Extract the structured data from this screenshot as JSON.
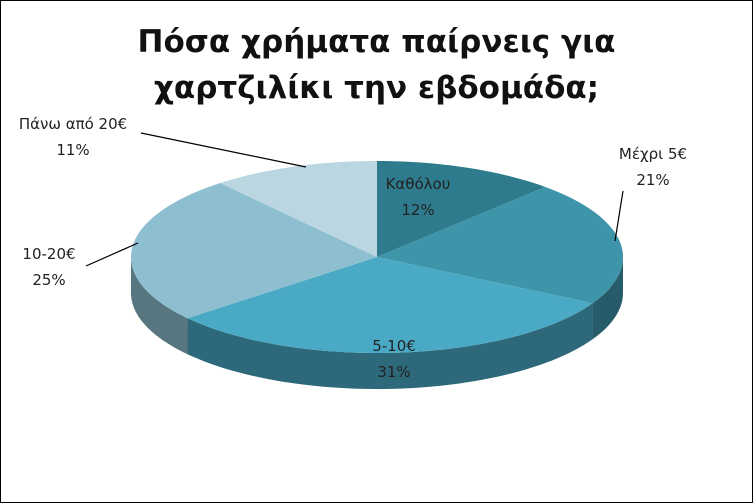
{
  "chart_data": {
    "type": "pie",
    "title": "Πόσα χρήματα παίρνεις για χαρτζιλίκι την εβδομάδα;",
    "categories": [
      "Καθόλου",
      "Μέχρι 5€",
      "5-10€",
      "10-20€",
      "Πάνω από 20€"
    ],
    "values": [
      12,
      21,
      31,
      25,
      11
    ],
    "value_labels": [
      "12%",
      "21%",
      "31%",
      "25%",
      "11%"
    ],
    "colors": [
      "#2f7b8e",
      "#3e95aa",
      "#4aaac5",
      "#8ebfd0",
      "#b9d6e1"
    ]
  }
}
